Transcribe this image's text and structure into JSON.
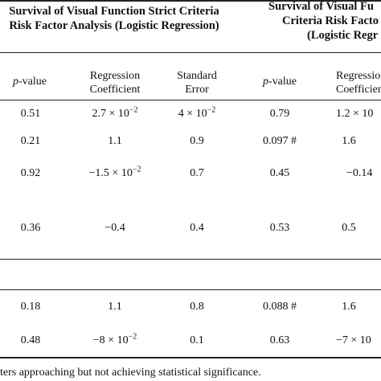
{
  "header": {
    "group1_line1": "Survival of Visual Function Strict Criteria",
    "group1_line2": "Risk Factor Analysis (Logistic Regression)",
    "group2_line1": "Survival of Visual Fu",
    "group2_line2": "Criteria Risk Facto",
    "group2_line3": "(Logistic Regr"
  },
  "columns": {
    "pvalue_italic": "p",
    "pvalue_suffix": "-value",
    "regression_line1": "Regression",
    "regression_line2": "Coefficient",
    "stderr_line1": "Standard",
    "stderr_line2": "Error",
    "regression2_line1": "Regressio",
    "regression2_line2": "Coefficien"
  },
  "rows": [
    {
      "p1": "0.51",
      "coef1_base": "2.7 × 10",
      "coef1_exp": "−2",
      "se1_base": "4 × 10",
      "se1_exp": "−2",
      "p2": "0.79",
      "coef2_base": "1.2 × 10",
      "coef2_exp": ""
    },
    {
      "p1": "0.21",
      "coef1": "1.1",
      "se1": "0.9",
      "p2": "0.097 #",
      "coef2": "1.6"
    },
    {
      "p1": "0.92",
      "coef1_base": "−1.5 × 10",
      "coef1_exp": "−2",
      "se1": "0.7",
      "p2": "0.45",
      "coef2": "−0.14"
    },
    {
      "p1": "0.36",
      "coef1": "−0.4",
      "se1": "0.4",
      "p2": "0.53",
      "coef2": "0.5"
    },
    {
      "p1": "0.18",
      "coef1": "1.1",
      "se1": "0.8",
      "p2": "0.088 #",
      "coef2": "1.6"
    },
    {
      "p1": "0.48",
      "coef1_base": "−8 × 10",
      "coef1_exp": "−2",
      "se1": "0.1",
      "p2": "0.63",
      "coef2": "−7 × 10"
    }
  ],
  "footnote": "ters approaching but not achieving statistical significance."
}
